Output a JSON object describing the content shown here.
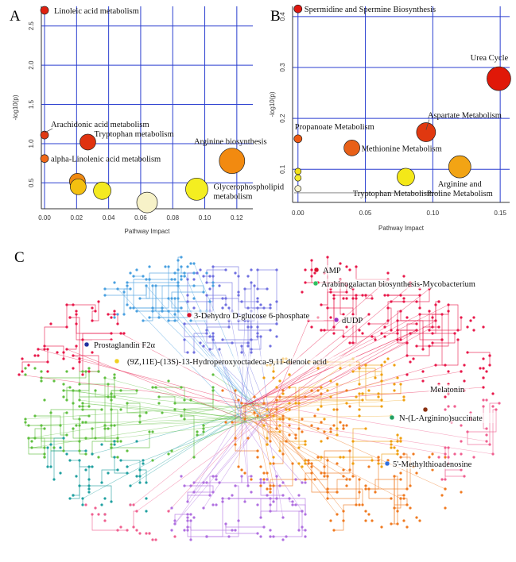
{
  "chart_data": [
    {
      "panel": "A",
      "type": "scatter",
      "xlabel": "Pathway Impact",
      "ylabel": "-log10(p)",
      "xlim": [
        -0.002,
        0.13
      ],
      "ylim": [
        0.17,
        2.75
      ],
      "x_ticks": [
        "0.00",
        "0.02",
        "0.04",
        "0.06",
        "0.08",
        "0.10",
        "0.12"
      ],
      "x_tick_values": [
        0,
        0.02,
        0.04,
        0.06,
        0.08,
        0.1,
        0.12
      ],
      "y_ticks": [
        "0.5",
        "1.0",
        "1.5",
        "2.0",
        "2.5"
      ],
      "y_tick_values": [
        0.5,
        1.0,
        1.5,
        2.0,
        2.5
      ],
      "grid": true,
      "points": [
        {
          "label": "Linoleic acid metabolism",
          "x": 0.0,
          "y": 2.7,
          "color": "#e02010",
          "size": 5
        },
        {
          "label": "Arachidonic acid metabolism",
          "x": 0.0,
          "y": 1.11,
          "color": "#e03a12",
          "size": 5
        },
        {
          "label": "Tryptophan metabolism",
          "x": 0.027,
          "y": 1.02,
          "color": "#e03210",
          "size": 10
        },
        {
          "label": "alpha-Linolenic acid metabolism",
          "x": 0.0,
          "y": 0.81,
          "color": "#f06818",
          "size": 5
        },
        {
          "label": "Arginine biosynthesis",
          "x": 0.117,
          "y": 0.78,
          "color": "#f28a10",
          "size": 16
        },
        {
          "label": "",
          "x": 0.0205,
          "y": 0.52,
          "color": "#f08a12",
          "size": 10
        },
        {
          "label": "",
          "x": 0.021,
          "y": 0.45,
          "color": "#f4c010",
          "size": 10
        },
        {
          "label": "",
          "x": 0.036,
          "y": 0.4,
          "color": "#f4ea20",
          "size": 11
        },
        {
          "label": "",
          "x": 0.064,
          "y": 0.25,
          "color": "#f7f2c8",
          "size": 13
        },
        {
          "label": "Glycerophospholipid metabolism",
          "x": 0.095,
          "y": 0.42,
          "color": "#f4ee20",
          "size": 14
        }
      ]
    },
    {
      "panel": "B",
      "type": "scatter",
      "xlabel": "Pathway Impact",
      "ylabel": "-log10(p)",
      "xlim": [
        -0.004,
        0.157
      ],
      "ylim": [
        0.035,
        0.42
      ],
      "x_ticks": [
        "0.00",
        "0.05",
        "0.10",
        "0.15"
      ],
      "x_tick_values": [
        0,
        0.05,
        0.1,
        0.15
      ],
      "y_ticks": [
        "0.1",
        "0.2",
        "0.3",
        "0.4"
      ],
      "y_tick_values": [
        0.1,
        0.2,
        0.3,
        0.4
      ],
      "grid": true,
      "points": [
        {
          "label": "Spermidine and Spermine Biosynthesis",
          "x": 0.0,
          "y": 0.415,
          "color": "#e01810",
          "size": 5
        },
        {
          "label": "Urea Cycle",
          "x": 0.149,
          "y": 0.278,
          "color": "#e01808",
          "size": 15
        },
        {
          "label": "Aspartate Metabolism",
          "x": 0.095,
          "y": 0.173,
          "color": "#e03810",
          "size": 12
        },
        {
          "label": "Propanoate Metabolism",
          "x": 0.0,
          "y": 0.16,
          "color": "#ee5a14",
          "size": 5
        },
        {
          "label": "Methionine Metabolism",
          "x": 0.04,
          "y": 0.142,
          "color": "#e86018",
          "size": 10
        },
        {
          "label": "Arginine and Proline Metabolism",
          "x": 0.12,
          "y": 0.105,
          "color": "#f2a414",
          "size": 14
        },
        {
          "label": "Tryptophan Metabolism",
          "x": 0.08,
          "y": 0.085,
          "color": "#f4e818",
          "size": 11
        },
        {
          "label": "",
          "x": 0.0,
          "y": 0.096,
          "color": "#f2e018",
          "size": 4
        },
        {
          "label": "",
          "x": 0.0,
          "y": 0.083,
          "color": "#f4ec30",
          "size": 4
        },
        {
          "label": "",
          "x": 0.0,
          "y": 0.062,
          "color": "#f8f4d0",
          "size": 4
        }
      ]
    },
    {
      "panel": "C",
      "type": "network",
      "labels": [
        {
          "text": "AMP",
          "color": "#d8102c"
        },
        {
          "text": "Arabinogalactan biosynthesis-Mycobacterium",
          "color": "#30c060"
        },
        {
          "text": "3-Dehydro D-glucose 6-phosphate",
          "color": "#d8102c"
        },
        {
          "text": "dUDP",
          "color": "#a030c0"
        },
        {
          "text": "Prostaglandin F2α",
          "color": "#2030a0"
        },
        {
          "text": "(9Z,11E)-(13S)-13-Hydroperoxyoctadeca-9,11-dienoic acid",
          "color": "#f0d020"
        },
        {
          "text": "Melatonin",
          "color": "#8a3010"
        },
        {
          "text": "N-(L-Arginino)succinate",
          "color": "#20a060"
        },
        {
          "text": "5'-Methylthioadenosine",
          "color": "#3070e0"
        }
      ],
      "palette": [
        "#e8184a",
        "#4aa0e0",
        "#7070e0",
        "#f0a010",
        "#f07a20",
        "#60c040",
        "#20a0a0",
        "#b070e0",
        "#f06090"
      ]
    }
  ],
  "panel_letters": {
    "a": "A",
    "b": "B",
    "c": "C"
  }
}
